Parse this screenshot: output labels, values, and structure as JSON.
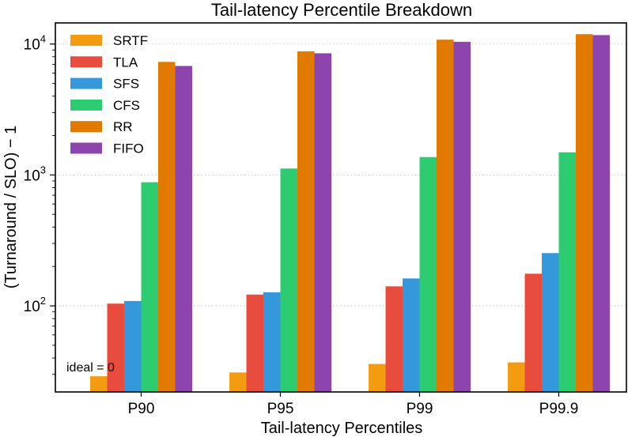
{
  "chart_data": {
    "type": "bar",
    "title": "Tail-latency Percentile Breakdown",
    "xlabel": "Tail-latency Percentiles",
    "ylabel": "(Turnaround / SLO) − 1",
    "yscale": "log",
    "ylim": [
      22,
      14500
    ],
    "categories": [
      "P90",
      "P95",
      "P99",
      "P99.9"
    ],
    "series": [
      {
        "name": "SRTF",
        "color": "#f39c12",
        "values": [
          29,
          31,
          36,
          37
        ]
      },
      {
        "name": "TLA",
        "color": "#e74c3c",
        "values": [
          104,
          122,
          141,
          176
        ]
      },
      {
        "name": "SFS",
        "color": "#3498db",
        "values": [
          109,
          127,
          162,
          253
        ]
      },
      {
        "name": "CFS",
        "color": "#2ecc71",
        "values": [
          880,
          1120,
          1370,
          1490
        ]
      },
      {
        "name": "RR",
        "color": "#e07b00",
        "values": [
          7300,
          8800,
          10800,
          11900
        ]
      },
      {
        "name": "FIFO",
        "color": "#8e44ad",
        "values": [
          6800,
          8500,
          10400,
          11700
        ]
      }
    ],
    "y_ticks": [
      {
        "value": 100,
        "base": "10",
        "exp": "2"
      },
      {
        "value": 1000,
        "base": "10",
        "exp": "3"
      },
      {
        "value": 10000,
        "base": "10",
        "exp": "4"
      }
    ],
    "grid": "y-major dotted",
    "legend": "top-left",
    "annotation": "ideal = 0"
  }
}
